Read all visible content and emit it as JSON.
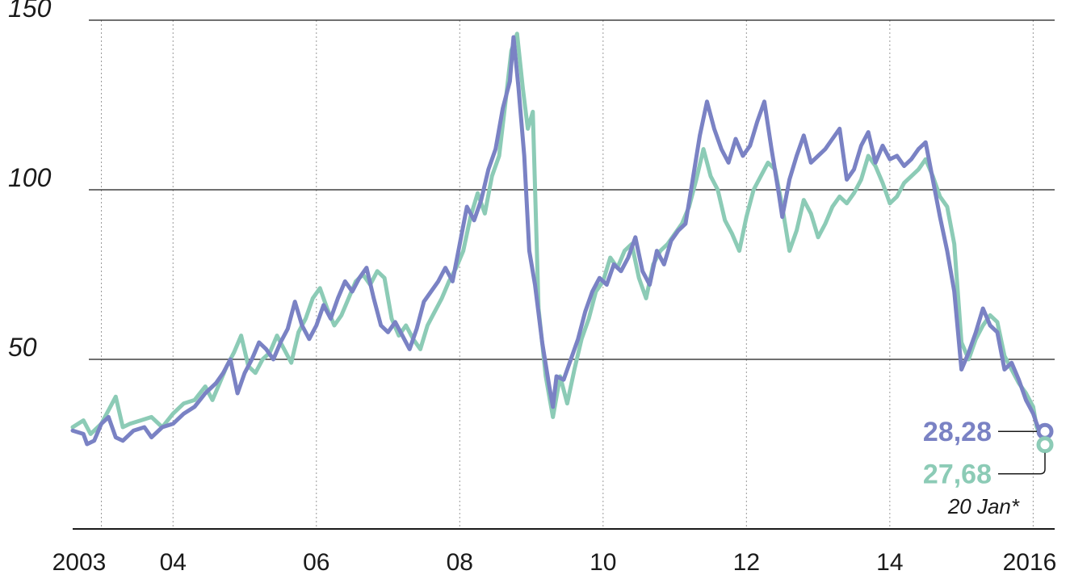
{
  "chart_data": {
    "type": "line",
    "title": "",
    "xlabel": "",
    "ylabel": "",
    "xlim": [
      2002.6,
      2016.3
    ],
    "ylim": [
      0,
      150
    ],
    "yticks": [
      "150",
      "100",
      "50"
    ],
    "ytick_values": [
      150,
      100,
      50
    ],
    "xticks": [
      {
        "label": "2003",
        "value": 2003.2
      },
      {
        "label": "04",
        "value": 2004.0
      },
      {
        "label": "06",
        "value": 2006.0
      },
      {
        "label": "08",
        "value": 2008.0
      },
      {
        "label": "10",
        "value": 2010.0
      },
      {
        "label": "12",
        "value": 2012.0
      },
      {
        "label": "14",
        "value": 2014.0
      },
      {
        "label": "2016",
        "value": 2016.0
      }
    ],
    "vgrid": [
      2003.0,
      2004.0,
      2006.0,
      2008.0,
      2010.0,
      2012.0,
      2014.0,
      2016.0
    ],
    "hgrid": [
      150,
      100,
      50
    ],
    "grid": true,
    "series": [
      {
        "color": "#8ccbb6",
        "end_value": 27.68,
        "end_label": "27,68",
        "points": [
          [
            2002.6,
            30
          ],
          [
            2002.75,
            32
          ],
          [
            2002.85,
            28
          ],
          [
            2003.0,
            31
          ],
          [
            2003.1,
            35
          ],
          [
            2003.2,
            39
          ],
          [
            2003.3,
            30
          ],
          [
            2003.4,
            31
          ],
          [
            2003.55,
            32
          ],
          [
            2003.7,
            33
          ],
          [
            2003.85,
            30
          ],
          [
            2004.0,
            34
          ],
          [
            2004.15,
            37
          ],
          [
            2004.3,
            38
          ],
          [
            2004.45,
            42
          ],
          [
            2004.55,
            38
          ],
          [
            2004.65,
            43
          ],
          [
            2004.75,
            48
          ],
          [
            2004.85,
            52
          ],
          [
            2004.95,
            57
          ],
          [
            2005.05,
            48
          ],
          [
            2005.15,
            46
          ],
          [
            2005.25,
            50
          ],
          [
            2005.35,
            52
          ],
          [
            2005.45,
            57
          ],
          [
            2005.55,
            53
          ],
          [
            2005.65,
            49
          ],
          [
            2005.75,
            58
          ],
          [
            2005.85,
            62
          ],
          [
            2005.95,
            68
          ],
          [
            2006.05,
            71
          ],
          [
            2006.15,
            65
          ],
          [
            2006.25,
            60
          ],
          [
            2006.35,
            63
          ],
          [
            2006.45,
            68
          ],
          [
            2006.55,
            73
          ],
          [
            2006.65,
            75
          ],
          [
            2006.75,
            72
          ],
          [
            2006.85,
            76
          ],
          [
            2006.95,
            74
          ],
          [
            2007.05,
            62
          ],
          [
            2007.15,
            57
          ],
          [
            2007.25,
            60
          ],
          [
            2007.35,
            56
          ],
          [
            2007.45,
            53
          ],
          [
            2007.55,
            60
          ],
          [
            2007.65,
            64
          ],
          [
            2007.75,
            68
          ],
          [
            2007.85,
            73
          ],
          [
            2007.95,
            77
          ],
          [
            2008.05,
            82
          ],
          [
            2008.15,
            92
          ],
          [
            2008.25,
            99
          ],
          [
            2008.35,
            93
          ],
          [
            2008.45,
            104
          ],
          [
            2008.55,
            110
          ],
          [
            2008.65,
            128
          ],
          [
            2008.72,
            141
          ],
          [
            2008.8,
            146
          ],
          [
            2008.88,
            130
          ],
          [
            2008.95,
            118
          ],
          [
            2009.02,
            123
          ],
          [
            2009.1,
            65
          ],
          [
            2009.2,
            45
          ],
          [
            2009.3,
            33
          ],
          [
            2009.4,
            45
          ],
          [
            2009.5,
            37
          ],
          [
            2009.6,
            47
          ],
          [
            2009.7,
            56
          ],
          [
            2009.8,
            62
          ],
          [
            2009.9,
            70
          ],
          [
            2010.0,
            73
          ],
          [
            2010.1,
            80
          ],
          [
            2010.2,
            77
          ],
          [
            2010.3,
            82
          ],
          [
            2010.4,
            84
          ],
          [
            2010.5,
            74
          ],
          [
            2010.6,
            68
          ],
          [
            2010.7,
            78
          ],
          [
            2010.8,
            82
          ],
          [
            2010.9,
            84
          ],
          [
            2011.0,
            87
          ],
          [
            2011.1,
            90
          ],
          [
            2011.2,
            95
          ],
          [
            2011.3,
            103
          ],
          [
            2011.4,
            112
          ],
          [
            2011.5,
            104
          ],
          [
            2011.6,
            100
          ],
          [
            2011.7,
            91
          ],
          [
            2011.8,
            87
          ],
          [
            2011.9,
            82
          ],
          [
            2012.0,
            92
          ],
          [
            2012.1,
            100
          ],
          [
            2012.2,
            104
          ],
          [
            2012.3,
            108
          ],
          [
            2012.4,
            106
          ],
          [
            2012.5,
            95
          ],
          [
            2012.6,
            82
          ],
          [
            2012.7,
            88
          ],
          [
            2012.8,
            97
          ],
          [
            2012.9,
            93
          ],
          [
            2013.0,
            86
          ],
          [
            2013.1,
            90
          ],
          [
            2013.2,
            95
          ],
          [
            2013.3,
            98
          ],
          [
            2013.4,
            96
          ],
          [
            2013.5,
            99
          ],
          [
            2013.6,
            103
          ],
          [
            2013.7,
            110
          ],
          [
            2013.8,
            107
          ],
          [
            2013.9,
            102
          ],
          [
            2014.0,
            96
          ],
          [
            2014.1,
            98
          ],
          [
            2014.2,
            102
          ],
          [
            2014.3,
            104
          ],
          [
            2014.4,
            106
          ],
          [
            2014.5,
            109
          ],
          [
            2014.6,
            104
          ],
          [
            2014.7,
            98
          ],
          [
            2014.8,
            95
          ],
          [
            2014.9,
            84
          ],
          [
            2015.0,
            55
          ],
          [
            2015.1,
            50
          ],
          [
            2015.2,
            56
          ],
          [
            2015.3,
            60
          ],
          [
            2015.4,
            63
          ],
          [
            2015.5,
            61
          ],
          [
            2015.6,
            51
          ],
          [
            2015.7,
            47
          ],
          [
            2015.8,
            43
          ],
          [
            2015.9,
            40
          ],
          [
            2016.0,
            36
          ],
          [
            2016.05,
            30
          ],
          [
            2016.1,
            27.68
          ]
        ]
      },
      {
        "color": "#7a82c4",
        "end_value": 28.28,
        "end_label": "28,28",
        "points": [
          [
            2002.6,
            29
          ],
          [
            2002.75,
            28
          ],
          [
            2002.8,
            25
          ],
          [
            2002.9,
            26
          ],
          [
            2003.0,
            31
          ],
          [
            2003.1,
            33
          ],
          [
            2003.2,
            27
          ],
          [
            2003.3,
            26
          ],
          [
            2003.45,
            29
          ],
          [
            2003.6,
            30
          ],
          [
            2003.7,
            27
          ],
          [
            2003.85,
            30
          ],
          [
            2004.0,
            31
          ],
          [
            2004.15,
            34
          ],
          [
            2004.3,
            36
          ],
          [
            2004.45,
            40
          ],
          [
            2004.6,
            43
          ],
          [
            2004.7,
            46
          ],
          [
            2004.8,
            50
          ],
          [
            2004.9,
            40
          ],
          [
            2005.0,
            46
          ],
          [
            2005.1,
            50
          ],
          [
            2005.2,
            55
          ],
          [
            2005.3,
            53
          ],
          [
            2005.4,
            50
          ],
          [
            2005.5,
            55
          ],
          [
            2005.6,
            59
          ],
          [
            2005.7,
            67
          ],
          [
            2005.8,
            60
          ],
          [
            2005.9,
            56
          ],
          [
            2006.0,
            60
          ],
          [
            2006.1,
            66
          ],
          [
            2006.2,
            62
          ],
          [
            2006.3,
            68
          ],
          [
            2006.4,
            73
          ],
          [
            2006.5,
            70
          ],
          [
            2006.6,
            74
          ],
          [
            2006.7,
            77
          ],
          [
            2006.8,
            68
          ],
          [
            2006.9,
            60
          ],
          [
            2007.0,
            58
          ],
          [
            2007.1,
            61
          ],
          [
            2007.2,
            57
          ],
          [
            2007.3,
            53
          ],
          [
            2007.4,
            59
          ],
          [
            2007.5,
            67
          ],
          [
            2007.6,
            70
          ],
          [
            2007.7,
            73
          ],
          [
            2007.8,
            77
          ],
          [
            2007.9,
            73
          ],
          [
            2008.0,
            84
          ],
          [
            2008.1,
            95
          ],
          [
            2008.2,
            91
          ],
          [
            2008.3,
            97
          ],
          [
            2008.4,
            106
          ],
          [
            2008.5,
            112
          ],
          [
            2008.6,
            124
          ],
          [
            2008.7,
            132
          ],
          [
            2008.75,
            145
          ],
          [
            2008.82,
            130
          ],
          [
            2008.9,
            110
          ],
          [
            2008.97,
            82
          ],
          [
            2009.05,
            72
          ],
          [
            2009.15,
            55
          ],
          [
            2009.25,
            42
          ],
          [
            2009.3,
            36
          ],
          [
            2009.35,
            45
          ],
          [
            2009.45,
            44
          ],
          [
            2009.55,
            50
          ],
          [
            2009.65,
            56
          ],
          [
            2009.75,
            64
          ],
          [
            2009.85,
            70
          ],
          [
            2009.95,
            74
          ],
          [
            2010.05,
            72
          ],
          [
            2010.15,
            78
          ],
          [
            2010.25,
            76
          ],
          [
            2010.35,
            80
          ],
          [
            2010.45,
            86
          ],
          [
            2010.55,
            76
          ],
          [
            2010.65,
            72
          ],
          [
            2010.75,
            82
          ],
          [
            2010.85,
            78
          ],
          [
            2010.95,
            85
          ],
          [
            2011.05,
            88
          ],
          [
            2011.15,
            90
          ],
          [
            2011.25,
            103
          ],
          [
            2011.35,
            116
          ],
          [
            2011.45,
            126
          ],
          [
            2011.55,
            118
          ],
          [
            2011.65,
            112
          ],
          [
            2011.75,
            108
          ],
          [
            2011.85,
            115
          ],
          [
            2011.95,
            110
          ],
          [
            2012.05,
            113
          ],
          [
            2012.15,
            120
          ],
          [
            2012.25,
            126
          ],
          [
            2012.35,
            112
          ],
          [
            2012.45,
            99
          ],
          [
            2012.5,
            92
          ],
          [
            2012.6,
            103
          ],
          [
            2012.7,
            110
          ],
          [
            2012.8,
            116
          ],
          [
            2012.9,
            108
          ],
          [
            2013.0,
            110
          ],
          [
            2013.1,
            112
          ],
          [
            2013.2,
            115
          ],
          [
            2013.3,
            118
          ],
          [
            2013.4,
            103
          ],
          [
            2013.5,
            106
          ],
          [
            2013.6,
            113
          ],
          [
            2013.7,
            117
          ],
          [
            2013.8,
            108
          ],
          [
            2013.9,
            113
          ],
          [
            2014.0,
            109
          ],
          [
            2014.1,
            110
          ],
          [
            2014.2,
            107
          ],
          [
            2014.3,
            109
          ],
          [
            2014.4,
            112
          ],
          [
            2014.5,
            114
          ],
          [
            2014.6,
            103
          ],
          [
            2014.7,
            92
          ],
          [
            2014.8,
            82
          ],
          [
            2014.9,
            70
          ],
          [
            2015.0,
            47
          ],
          [
            2015.1,
            52
          ],
          [
            2015.2,
            58
          ],
          [
            2015.3,
            65
          ],
          [
            2015.4,
            60
          ],
          [
            2015.5,
            58
          ],
          [
            2015.6,
            47
          ],
          [
            2015.7,
            49
          ],
          [
            2015.8,
            44
          ],
          [
            2015.9,
            38
          ],
          [
            2016.0,
            34
          ],
          [
            2016.05,
            31
          ],
          [
            2016.1,
            28.28
          ]
        ]
      }
    ],
    "annotation": "20 Jan*"
  }
}
